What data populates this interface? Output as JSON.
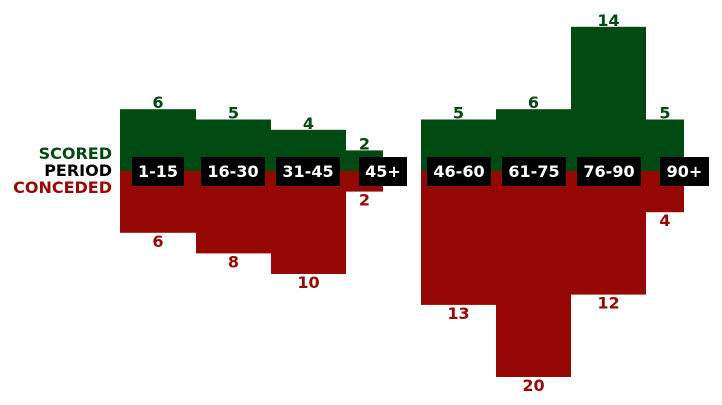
{
  "chart_data": {
    "type": "bar",
    "row_labels": {
      "scored": "SCORED",
      "period": "PERIOD",
      "conceded": "CONCEDED"
    },
    "categories": [
      "1-15",
      "16-30",
      "31-45",
      "45+",
      "46-60",
      "61-75",
      "76-90",
      "90+"
    ],
    "series": [
      {
        "name": "SCORED",
        "values": [
          6,
          5,
          4,
          2,
          5,
          6,
          14,
          5
        ]
      },
      {
        "name": "CONCEDED",
        "values": [
          6,
          8,
          10,
          2,
          13,
          20,
          12,
          4
        ]
      }
    ],
    "colors": {
      "scored": "#004a12",
      "conceded": "#960806",
      "period_box": "#000000",
      "period_text": "#ffffff",
      "period_label": "#000000"
    }
  }
}
